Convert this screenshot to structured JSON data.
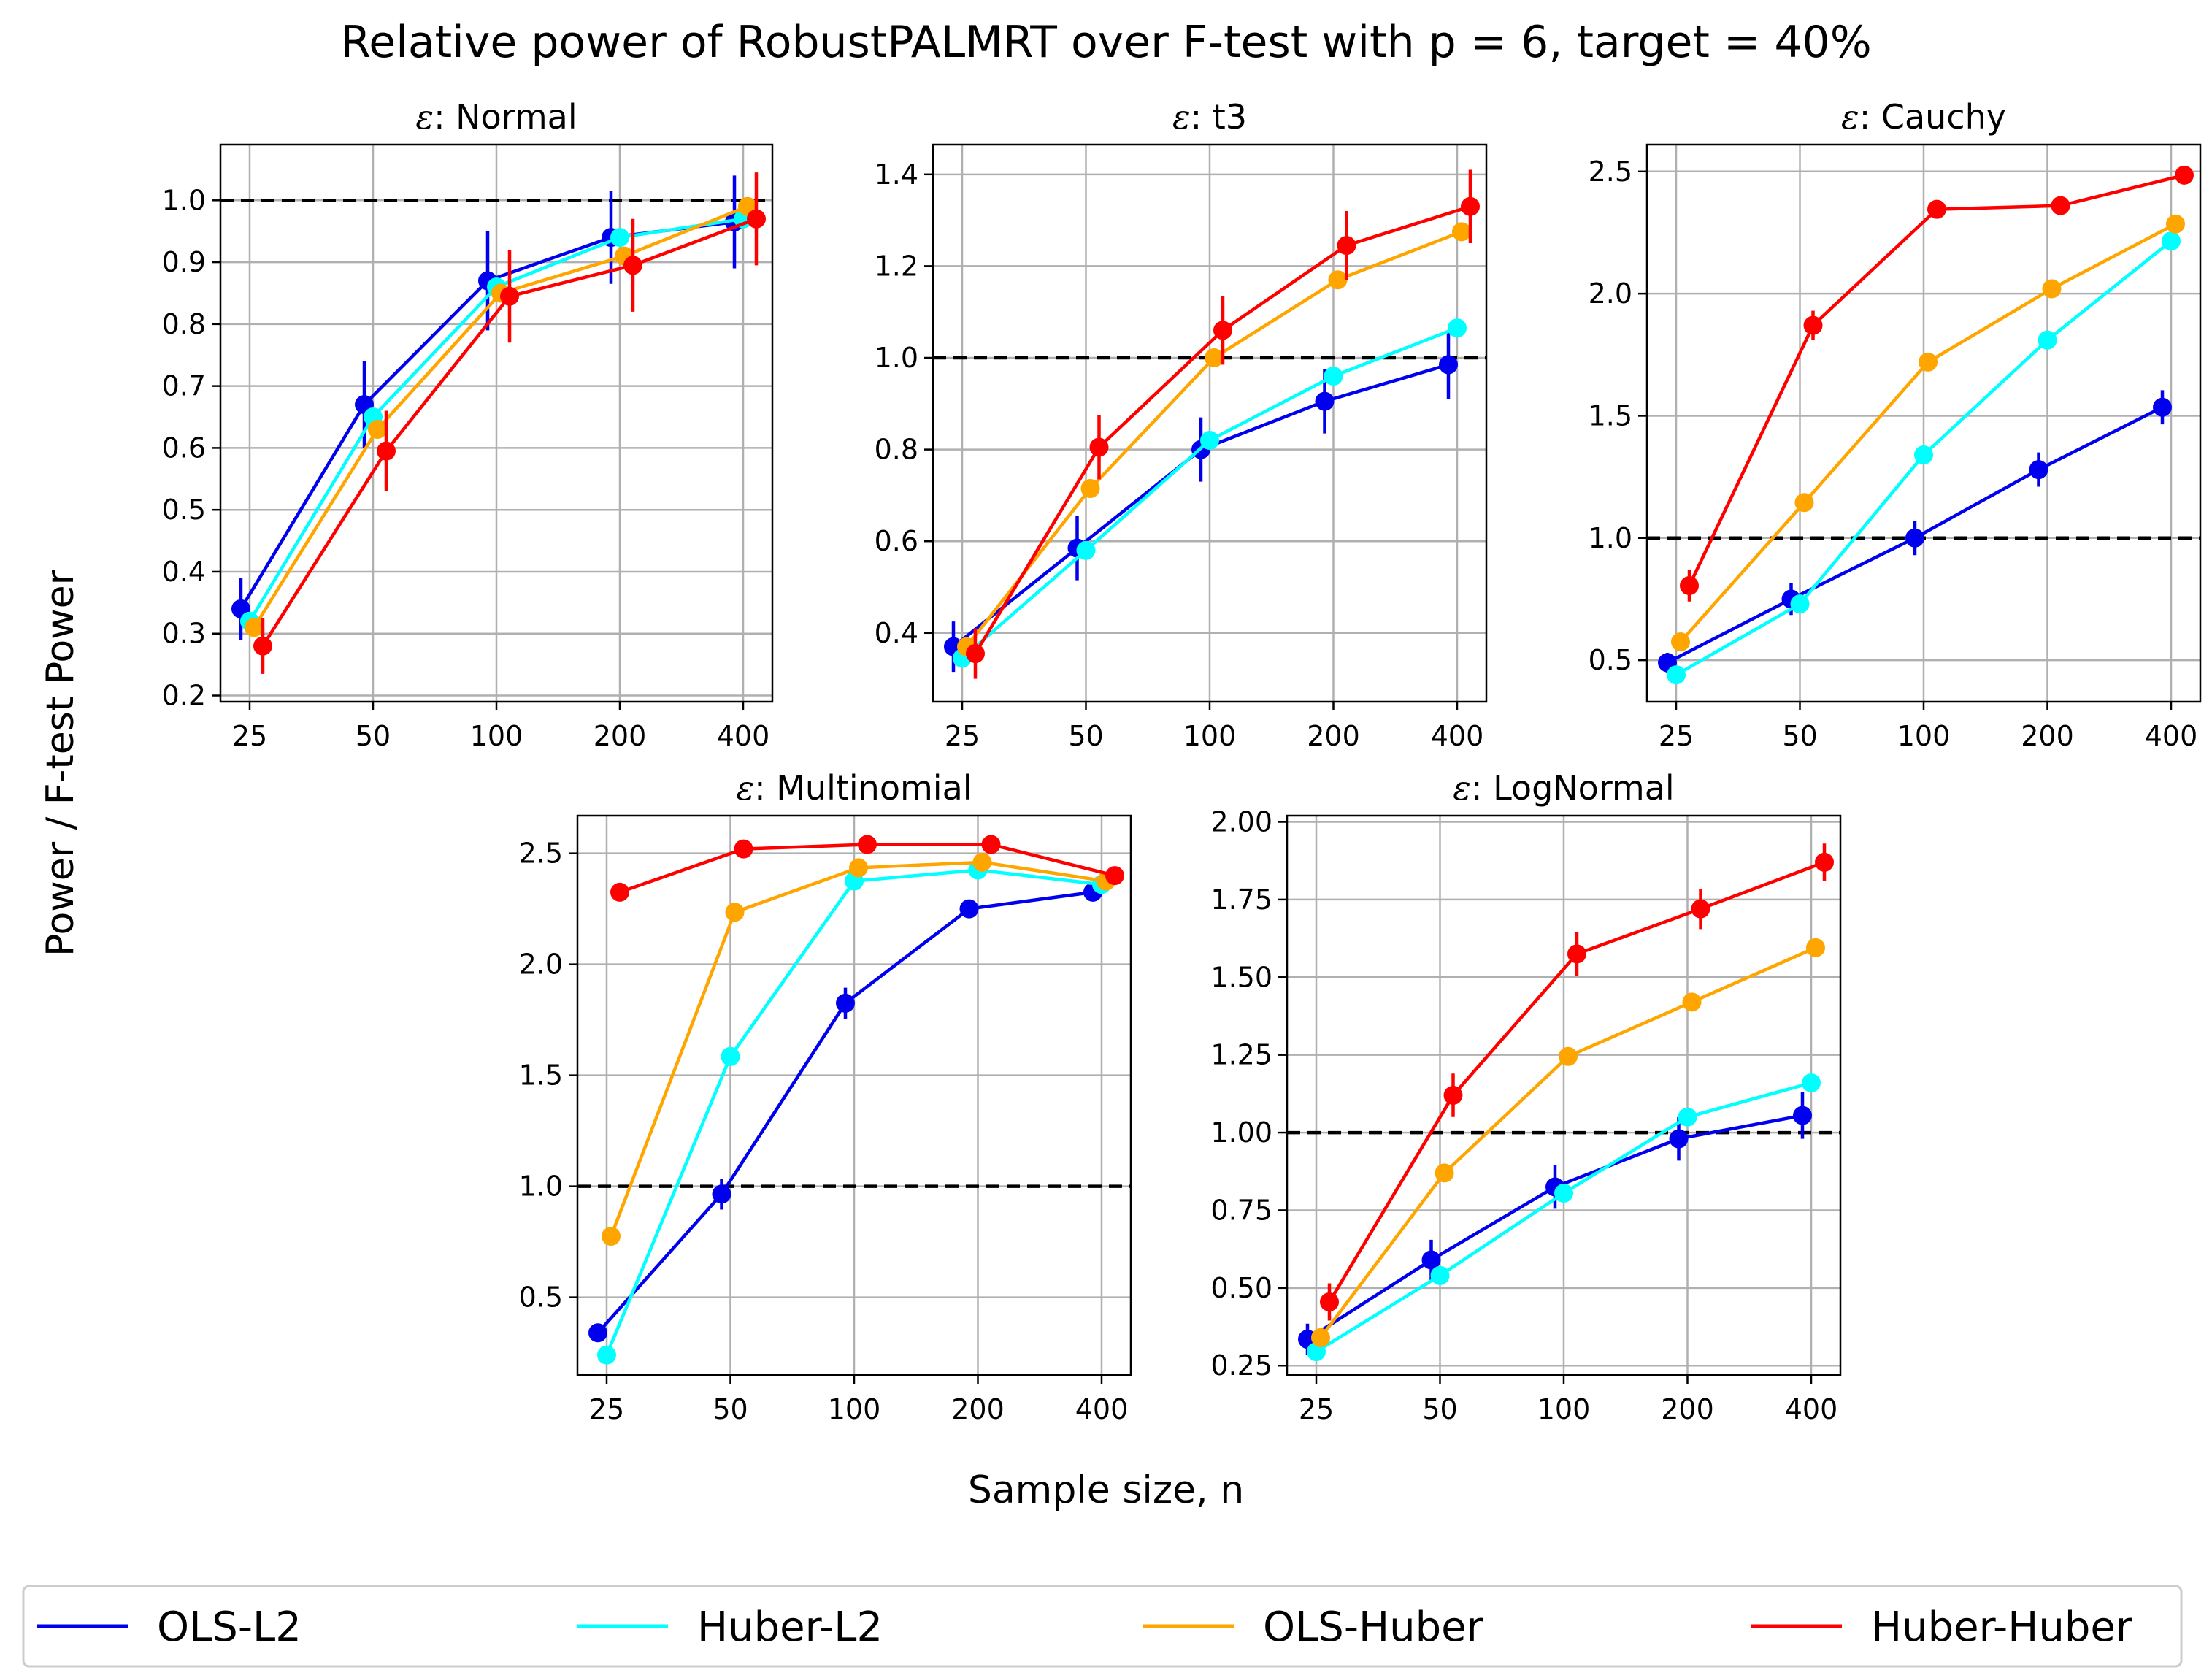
{
  "title": "Relative power of RobustPALMRT over F-test with p = 6, target = 40%",
  "xlabel": "Sample size, n",
  "ylabel": "Power / F-test Power",
  "colors": {
    "OLS-L2": "#0000ee",
    "Huber-L2": "#00ffff",
    "OLS-Huber": "#ffa500",
    "Huber-Huber": "#ff0000",
    "reference": "#000000",
    "grid": "#b0b0b0"
  },
  "legend": {
    "placement": "bottom",
    "items": [
      "OLS-L2",
      "Huber-L2",
      "OLS-Huber",
      "Huber-Huber"
    ]
  },
  "chart_data": [
    {
      "type": "line",
      "title_symbol": "ε",
      "title_text": ": Normal",
      "categories": [
        "25",
        "50",
        "100",
        "200",
        "400"
      ],
      "ylim": [
        0.19,
        1.09
      ],
      "yticks": [
        0.2,
        0.3,
        0.4,
        0.5,
        0.6,
        0.7,
        0.8,
        0.9,
        1.0
      ],
      "ytick_labels": [
        "0.2",
        "0.3",
        "0.4",
        "0.5",
        "0.6",
        "0.7",
        "0.8",
        "0.9",
        "1.0"
      ],
      "reference_line": 1.0,
      "grid": true,
      "series": [
        {
          "name": "OLS-L2",
          "values": [
            0.34,
            0.67,
            0.87,
            0.94,
            0.965
          ],
          "err": [
            0.05,
            0.07,
            0.08,
            0.075,
            0.075
          ]
        },
        {
          "name": "Huber-L2",
          "values": [
            0.32,
            0.65,
            0.86,
            0.94,
            0.97
          ],
          "err": [
            0,
            0,
            0,
            0,
            0
          ]
        },
        {
          "name": "OLS-Huber",
          "values": [
            0.31,
            0.63,
            0.85,
            0.91,
            0.99
          ],
          "err": [
            0,
            0,
            0,
            0,
            0
          ]
        },
        {
          "name": "Huber-Huber",
          "values": [
            0.28,
            0.595,
            0.845,
            0.895,
            0.97
          ],
          "err": [
            0.045,
            0.065,
            0.075,
            0.075,
            0.075
          ]
        }
      ]
    },
    {
      "type": "line",
      "title_symbol": "ε",
      "title_text": ": t3",
      "categories": [
        "25",
        "50",
        "100",
        "200",
        "400"
      ],
      "ylim": [
        0.25,
        1.465
      ],
      "yticks": [
        0.4,
        0.6,
        0.8,
        1.0,
        1.2,
        1.4
      ],
      "ytick_labels": [
        "0.4",
        "0.6",
        "0.8",
        "1.0",
        "1.2",
        "1.4"
      ],
      "reference_line": 1.0,
      "grid": true,
      "series": [
        {
          "name": "OLS-L2",
          "values": [
            0.37,
            0.585,
            0.8,
            0.905,
            0.985
          ],
          "err": [
            0.055,
            0.07,
            0.07,
            0.07,
            0.075
          ]
        },
        {
          "name": "Huber-L2",
          "values": [
            0.345,
            0.58,
            0.82,
            0.96,
            1.065
          ],
          "err": [
            0,
            0,
            0,
            0,
            0
          ]
        },
        {
          "name": "OLS-Huber",
          "values": [
            0.37,
            0.715,
            1.0,
            1.17,
            1.275
          ],
          "err": [
            0,
            0,
            0,
            0,
            0
          ]
        },
        {
          "name": "Huber-Huber",
          "values": [
            0.355,
            0.805,
            1.06,
            1.245,
            1.33
          ],
          "err": [
            0.055,
            0.07,
            0.075,
            0.075,
            0.08
          ]
        }
      ]
    },
    {
      "type": "line",
      "title_symbol": "ε",
      "title_text": ": Cauchy",
      "categories": [
        "25",
        "50",
        "100",
        "200",
        "400"
      ],
      "ylim": [
        0.33,
        2.61
      ],
      "yticks": [
        0.5,
        1.0,
        1.5,
        2.0,
        2.5
      ],
      "ytick_labels": [
        "0.5",
        "1.0",
        "1.5",
        "2.0",
        "2.5"
      ],
      "reference_line": 1.0,
      "grid": true,
      "series": [
        {
          "name": "OLS-L2",
          "values": [
            0.49,
            0.75,
            1.0,
            1.28,
            1.535
          ],
          "err": [
            0.04,
            0.065,
            0.07,
            0.07,
            0.07
          ]
        },
        {
          "name": "Huber-L2",
          "values": [
            0.44,
            0.73,
            1.34,
            1.81,
            2.215
          ],
          "err": [
            0,
            0,
            0,
            0,
            0
          ]
        },
        {
          "name": "OLS-Huber",
          "values": [
            0.575,
            1.145,
            1.72,
            2.02,
            2.285
          ],
          "err": [
            0,
            0,
            0,
            0,
            0
          ]
        },
        {
          "name": "Huber-Huber",
          "values": [
            0.805,
            1.87,
            2.345,
            2.36,
            2.485
          ],
          "err": [
            0.065,
            0.06,
            0,
            0,
            0
          ]
        }
      ]
    },
    {
      "type": "line",
      "title_symbol": "ε",
      "title_text": ": Multinomial",
      "categories": [
        "25",
        "50",
        "100",
        "200",
        "400"
      ],
      "ylim": [
        0.15,
        2.67
      ],
      "yticks": [
        0.5,
        1.0,
        1.5,
        2.0,
        2.5
      ],
      "ytick_labels": [
        "0.5",
        "1.0",
        "1.5",
        "2.0",
        "2.5"
      ],
      "reference_line": 1.0,
      "grid": true,
      "series": [
        {
          "name": "OLS-L2",
          "values": [
            0.34,
            0.965,
            1.825,
            2.25,
            2.325
          ],
          "err": [
            0.03,
            0.07,
            0.07,
            0.02,
            0.02
          ]
        },
        {
          "name": "Huber-L2",
          "values": [
            0.24,
            1.585,
            2.375,
            2.425,
            2.36
          ],
          "err": [
            0,
            0,
            0,
            0,
            0
          ]
        },
        {
          "name": "OLS-Huber",
          "values": [
            0.775,
            2.235,
            2.435,
            2.46,
            2.375
          ],
          "err": [
            0,
            0,
            0,
            0,
            0
          ]
        },
        {
          "name": "Huber-Huber",
          "values": [
            2.325,
            2.52,
            2.54,
            2.54,
            2.4
          ],
          "err": [
            0,
            0,
            0,
            0,
            0
          ]
        }
      ]
    },
    {
      "type": "line",
      "title_symbol": "ε",
      "title_text": ": LogNormal",
      "categories": [
        "25",
        "50",
        "100",
        "200",
        "400"
      ],
      "ylim": [
        0.22,
        2.02
      ],
      "yticks": [
        0.25,
        0.5,
        0.75,
        1.0,
        1.25,
        1.5,
        1.75,
        2.0
      ],
      "ytick_labels": [
        "0.25",
        "0.50",
        "0.75",
        "1.00",
        "1.25",
        "1.50",
        "1.75",
        "2.00"
      ],
      "reference_line": 1.0,
      "grid": true,
      "series": [
        {
          "name": "OLS-L2",
          "values": [
            0.335,
            0.59,
            0.825,
            0.98,
            1.055
          ],
          "err": [
            0.05,
            0.065,
            0.07,
            0.07,
            0.075
          ]
        },
        {
          "name": "Huber-L2",
          "values": [
            0.295,
            0.54,
            0.805,
            1.05,
            1.16
          ],
          "err": [
            0,
            0,
            0,
            0,
            0
          ]
        },
        {
          "name": "OLS-Huber",
          "values": [
            0.34,
            0.87,
            1.245,
            1.42,
            1.595
          ],
          "err": [
            0,
            0,
            0,
            0,
            0
          ]
        },
        {
          "name": "Huber-Huber",
          "values": [
            0.455,
            1.12,
            1.575,
            1.72,
            1.87
          ],
          "err": [
            0.06,
            0.07,
            0.07,
            0.065,
            0.06
          ]
        }
      ]
    }
  ]
}
